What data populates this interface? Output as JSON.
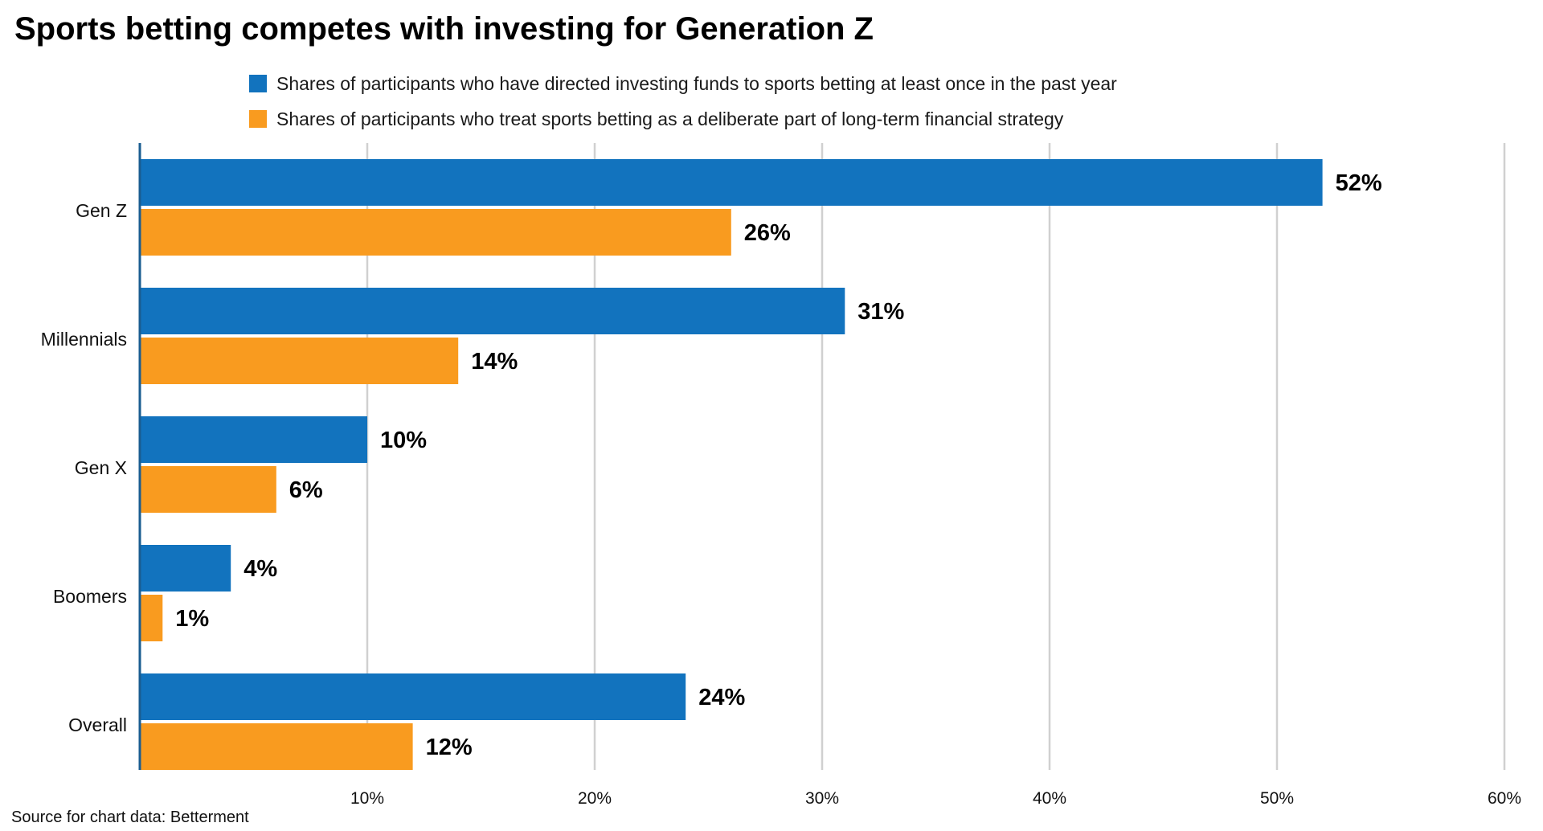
{
  "chart_data": {
    "type": "bar",
    "orientation": "horizontal",
    "title": "Sports betting competes with investing for Generation Z",
    "categories": [
      "Gen Z",
      "Millennials",
      "Gen X",
      "Boomers",
      "Overall"
    ],
    "series": [
      {
        "name": "Shares of participants who have directed investing funds to sports betting at least once in the past year",
        "values": [
          52,
          31,
          10,
          4,
          24
        ],
        "color": "#1273be"
      },
      {
        "name": "Shares of participants who treat sports betting as a deliberate part of long-term financial strategy",
        "values": [
          26,
          14,
          6,
          1,
          12
        ],
        "color": "#f99b1f"
      }
    ],
    "value_suffix": "%",
    "xlim": [
      0,
      60
    ],
    "xticks": [
      "10%",
      "20%",
      "30%",
      "40%",
      "50%",
      "60%"
    ],
    "xtick_values": [
      10,
      20,
      30,
      40,
      50,
      60
    ],
    "grid": true,
    "grid_color": "#d0d0d0",
    "axis_color": "#1a5d91",
    "legend_position": "top",
    "source": "Source for chart data: Betterment"
  }
}
